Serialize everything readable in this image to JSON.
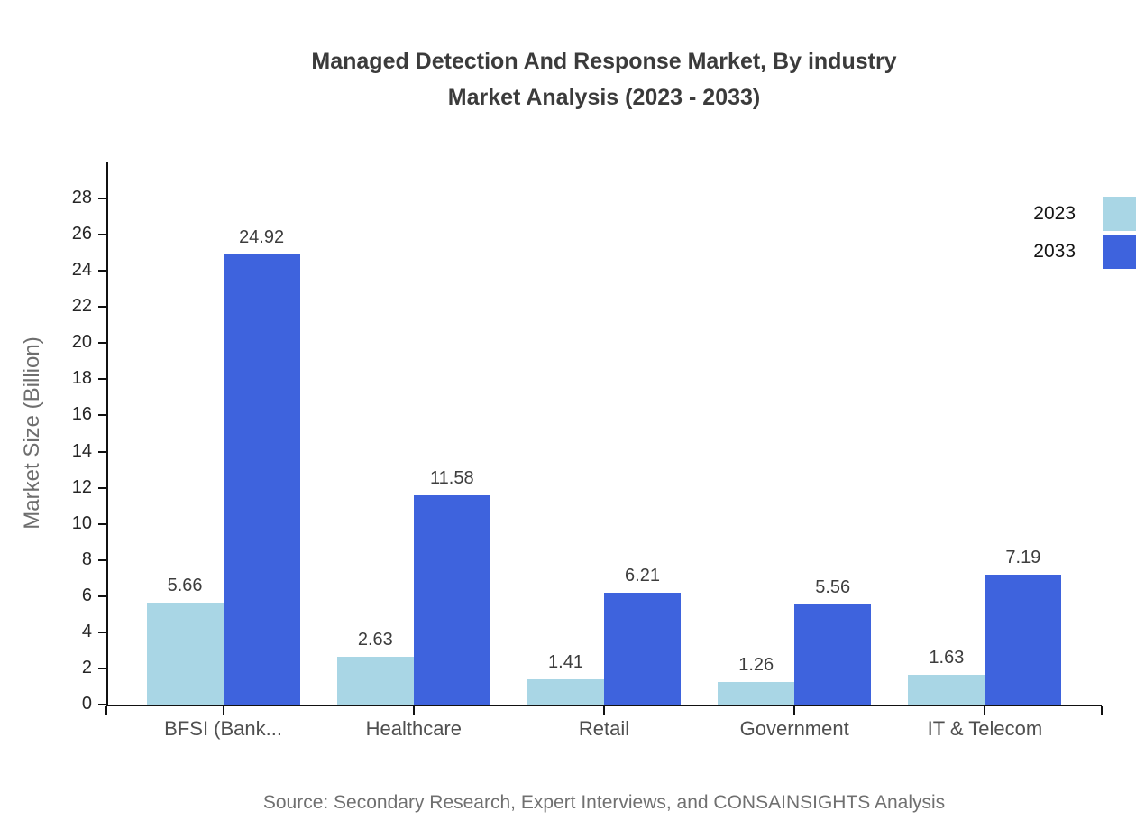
{
  "header": {
    "title_line1": "Managed Detection And Response Market, By industry",
    "title_line2": "Market Analysis (2023 - 2033)"
  },
  "footer": {
    "source": "Source: Secondary Research, Expert Interviews, and CONSAINSIGHTS Analysis"
  },
  "chart_data": {
    "type": "bar",
    "title": "Managed Detection And Response Market, By industry Market Analysis (2023 - 2033)",
    "categories": [
      "BFSI (Bank...",
      "Healthcare",
      "Retail",
      "Government",
      "IT & Telecom"
    ],
    "series": [
      {
        "name": "2023",
        "color": "#A9D6E5",
        "values": [
          5.66,
          2.63,
          1.41,
          1.26,
          1.63
        ]
      },
      {
        "name": "2033",
        "color": "#3E63DD",
        "values": [
          24.92,
          11.58,
          6.21,
          5.56,
          7.19
        ]
      }
    ],
    "xlabel": "",
    "ylabel": "Market Size (Billion)",
    "ylim": [
      0,
      30
    ],
    "ytick_step": 2,
    "ytick_max": 28,
    "grid": false,
    "value_labels": true,
    "legend_position": "top-right"
  },
  "colors": {
    "background": "#FFFFFF",
    "title": "#3B3B3B",
    "axis": "#111111",
    "tick_label": "#262626",
    "category_label": "#4F4F4F",
    "value_label": "#3D3D3D",
    "ylabel": "#6E6E6E",
    "source": "#707070"
  }
}
